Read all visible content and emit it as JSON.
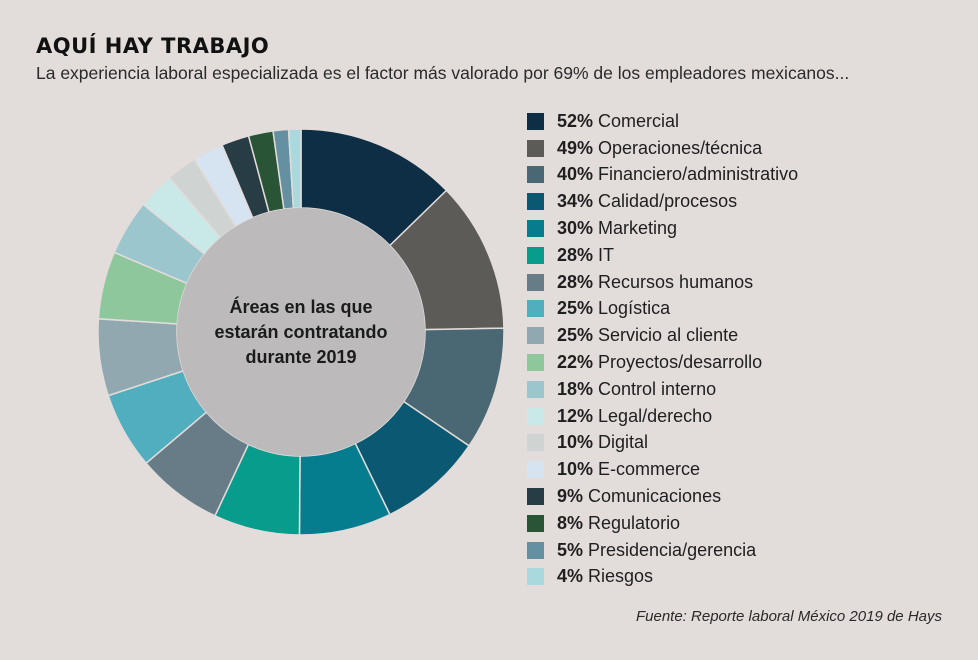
{
  "header": {
    "title": "AQUÍ HAY TRABAJO",
    "subtitle": "La experiencia laboral especializada es el factor más valorado por 69% de los empleadores mexicanos..."
  },
  "chart_data": {
    "type": "pie",
    "variant": "donut",
    "center_label": [
      "Áreas en las que",
      "estarán contratando",
      "durante 2019"
    ],
    "slices": [
      {
        "label": "Comercial",
        "value": 52,
        "value_label": "52%",
        "color": "#0d2e45"
      },
      {
        "label": "Operaciones/técnica",
        "value": 49,
        "value_label": "49%",
        "color": "#5d5b57"
      },
      {
        "label": "Financiero/administrativo",
        "value": 40,
        "value_label": "40%",
        "color": "#4a6874"
      },
      {
        "label": "Calidad/procesos",
        "value": 34,
        "value_label": "34%",
        "color": "#0b5873"
      },
      {
        "label": "Marketing",
        "value": 30,
        "value_label": "30%",
        "color": "#067d8e"
      },
      {
        "label": "IT",
        "value": 28,
        "value_label": "28%",
        "color": "#079c8b"
      },
      {
        "label": "Recursos humanos",
        "value": 28,
        "value_label": "28%",
        "color": "#687c88"
      },
      {
        "label": "Logística",
        "value": 25,
        "value_label": "25%",
        "color": "#50aebe"
      },
      {
        "label": "Servicio al cliente",
        "value": 25,
        "value_label": "25%",
        "color": "#92a8b1"
      },
      {
        "label": "Proyectos/desarrollo",
        "value": 22,
        "value_label": "22%",
        "color": "#8fc79d"
      },
      {
        "label": "Control interno",
        "value": 18,
        "value_label": "18%",
        "color": "#9bc6ce"
      },
      {
        "label": "Legal/derecho",
        "value": 12,
        "value_label": "12%",
        "color": "#c9e9e8"
      },
      {
        "label": "Digital",
        "value": 10,
        "value_label": "10%",
        "color": "#cfd4d2"
      },
      {
        "label": "E-commerce",
        "value": 10,
        "value_label": "10%",
        "color": "#d6e4f2"
      },
      {
        "label": "Comunicaciones",
        "value": 9,
        "value_label": "9%",
        "color": "#283c45"
      },
      {
        "label": "Regulatorio",
        "value": 8,
        "value_label": "8%",
        "color": "#2a5436"
      },
      {
        "label": "Presidencia/gerencia",
        "value": 5,
        "value_label": "5%",
        "color": "#6490a2"
      },
      {
        "label": "Riesgos",
        "value": 4,
        "value_label": "4%",
        "color": "#a9d9dd"
      }
    ],
    "center_color": "#bcbabb",
    "legend_position": "right"
  },
  "footer": {
    "source": "Fuente: Reporte laboral México 2019 de Hays"
  }
}
